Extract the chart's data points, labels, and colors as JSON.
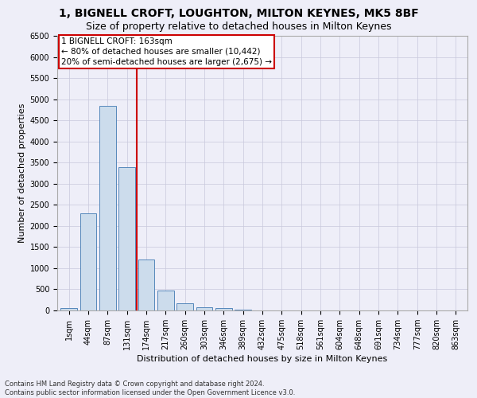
{
  "title": "1, BIGNELL CROFT, LOUGHTON, MILTON KEYNES, MK5 8BF",
  "subtitle": "Size of property relative to detached houses in Milton Keynes",
  "xlabel": "Distribution of detached houses by size in Milton Keynes",
  "ylabel": "Number of detached properties",
  "footer_line1": "Contains HM Land Registry data © Crown copyright and database right 2024.",
  "footer_line2": "Contains public sector information licensed under the Open Government Licence v3.0.",
  "categories": [
    "1sqm",
    "44sqm",
    "87sqm",
    "131sqm",
    "174sqm",
    "217sqm",
    "260sqm",
    "303sqm",
    "346sqm",
    "389sqm",
    "432sqm",
    "475sqm",
    "518sqm",
    "561sqm",
    "604sqm",
    "648sqm",
    "691sqm",
    "734sqm",
    "777sqm",
    "820sqm",
    "863sqm"
  ],
  "values": [
    50,
    2300,
    4850,
    3400,
    1200,
    480,
    175,
    80,
    50,
    10,
    5,
    5,
    0,
    0,
    0,
    0,
    0,
    0,
    0,
    0,
    0
  ],
  "bar_color": "#ccdcec",
  "bar_edge_color": "#5588bb",
  "vline_x_index": 3.5,
  "vline_color": "#cc0000",
  "annotation_line1": "1 BIGNELL CROFT: 163sqm",
  "annotation_line2": "← 80% of detached houses are smaller (10,442)",
  "annotation_line3": "20% of semi-detached houses are larger (2,675) →",
  "annotation_box_edgecolor": "#cc0000",
  "ylim_max": 6500,
  "yticks": [
    0,
    500,
    1000,
    1500,
    2000,
    2500,
    3000,
    3500,
    4000,
    4500,
    5000,
    5500,
    6000,
    6500
  ],
  "grid_color": "#c8c8dc",
  "bg_color": "#eeeef8",
  "title_fontsize": 10,
  "subtitle_fontsize": 9,
  "axis_label_fontsize": 8,
  "tick_fontsize": 7,
  "footer_fontsize": 6
}
